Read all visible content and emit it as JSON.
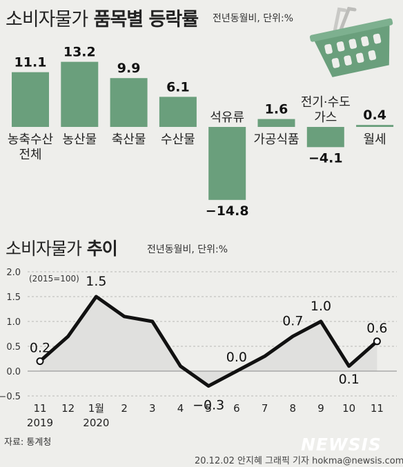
{
  "header": {
    "title_plain": "소비자물가",
    "title_bold": "품목별 등락률",
    "subtitle": "전년동월비, 단위:%"
  },
  "trend_header": {
    "title_plain": "소비자물가",
    "title_bold": "추이",
    "subtitle": "전년동월비, 단위:%"
  },
  "footer": {
    "source": "자료: 통계청",
    "credit": "20.12.02 안지혜 그래픽 기자 hokma@newsis.com",
    "watermark": "NEWSIS"
  },
  "icons": [
    "shopping-basket-icon"
  ],
  "colors": {
    "bar": "#6a9f7c",
    "line": "#111111",
    "area_fill": "#e0e0de",
    "background": "#eeeeeb"
  },
  "chart_data": [
    {
      "type": "bar",
      "categories": [
        [
          "농축수산",
          "전체"
        ],
        [
          "농산물"
        ],
        [
          "축산물"
        ],
        [
          "수산물"
        ],
        [
          "석유류"
        ],
        [
          "가공식품"
        ],
        [
          "전기·수도",
          "가스"
        ],
        [
          "월세"
        ]
      ],
      "values": [
        11.1,
        13.2,
        9.9,
        6.1,
        -14.8,
        1.6,
        -4.1,
        0.4
      ],
      "value_labels": [
        "11.1",
        "13.2",
        "9.9",
        "6.1",
        "−14.8",
        "1.6",
        "−4.1",
        "0.4"
      ],
      "grid": false
    },
    {
      "type": "line",
      "x": [
        "11",
        "12",
        "1월",
        "2",
        "3",
        "4",
        "5",
        "6",
        "7",
        "8",
        "9",
        "10",
        "11"
      ],
      "x_year_labels": [
        "2019",
        "2020"
      ],
      "y": [
        0.2,
        0.7,
        1.5,
        1.1,
        1.0,
        0.1,
        -0.3,
        0.0,
        0.3,
        0.7,
        1.0,
        0.1,
        0.6
      ],
      "labels": [
        {
          "index": 0,
          "text": "0.2"
        },
        {
          "index": 2,
          "text": "1.5"
        },
        {
          "index": 6,
          "text": "−0.3"
        },
        {
          "index": 7,
          "text": "0.0"
        },
        {
          "index": 9,
          "text": "0.7"
        },
        {
          "index": 10,
          "text": "1.0"
        },
        {
          "index": 11,
          "text": "0.1"
        },
        {
          "index": 12,
          "text": "0.6"
        }
      ],
      "yticks": [
        "2.0",
        "1.5",
        "1.0",
        "0.5",
        "0.0",
        "−0.5"
      ],
      "ytick_values": [
        2.0,
        1.5,
        1.0,
        0.5,
        0.0,
        -0.5
      ],
      "ylim": [
        -0.5,
        2.0
      ],
      "annotation": "(2015=100)",
      "grid": "horizontal dashed"
    }
  ]
}
